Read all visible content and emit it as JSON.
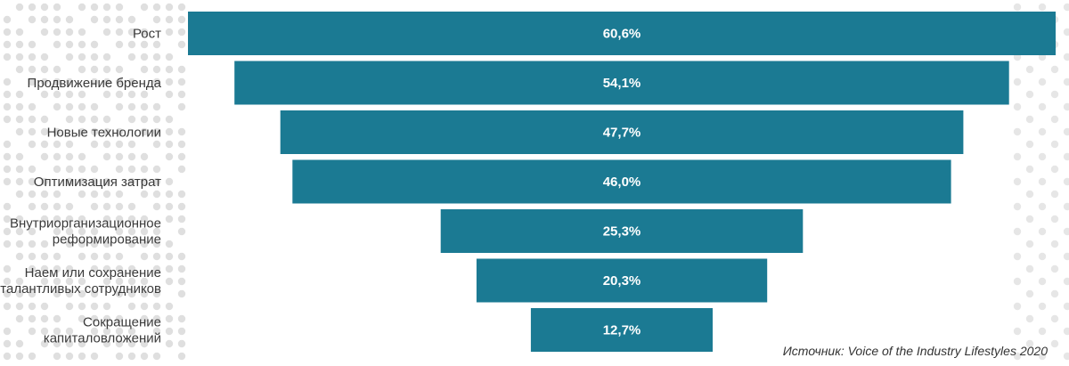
{
  "colors": {
    "bar": "#1b7a93",
    "background_dots": "#dcdcdc",
    "label": "#3a3a3a",
    "value_text": "#ffffff"
  },
  "source": "Источник: Voice of the Industry Lifestyles 2020",
  "chart_data": {
    "type": "bar",
    "orientation": "horizontal",
    "layout": "funnel (centered bars)",
    "categories": [
      [
        "Рост"
      ],
      [
        "Продвижение бренда"
      ],
      [
        "Новые технологии"
      ],
      [
        "Оптимизация затрат"
      ],
      [
        "Внутриорганизационное",
        "реформирование"
      ],
      [
        "Наем или сохранение",
        "талантливых сотрудников"
      ],
      [
        "Сокращение",
        "капиталовложений"
      ]
    ],
    "values": [
      60.6,
      54.1,
      47.7,
      46.0,
      25.3,
      20.3,
      12.7
    ],
    "value_labels": [
      "60,6%",
      "54,1%",
      "47,7%",
      "46,0%",
      "25,3%",
      "20,3%",
      "12,7%"
    ],
    "title": "",
    "xlabel": "",
    "ylabel": "",
    "xlim": [
      0,
      60.6
    ],
    "grid": false,
    "legend": "none"
  }
}
